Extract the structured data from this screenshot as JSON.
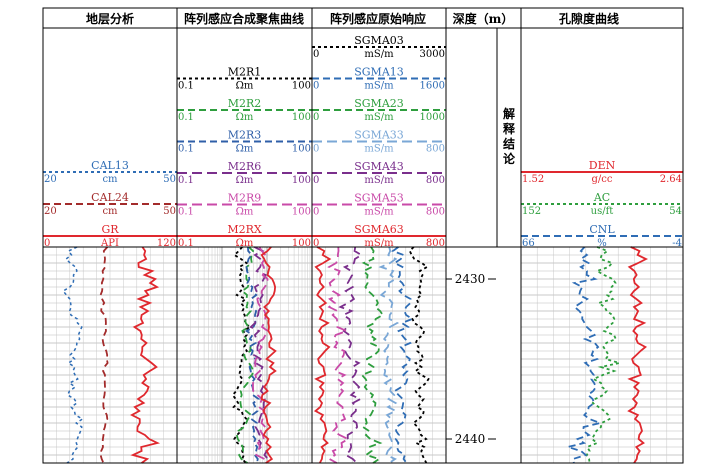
{
  "tracks": [
    {
      "key": "t1",
      "title": "地层分析"
    },
    {
      "key": "t2",
      "title": "阵列感应合成聚焦曲线"
    },
    {
      "key": "t3",
      "title": "阵列感应原始响应"
    },
    {
      "key": "t4",
      "title": "深度（m）"
    },
    {
      "key": "t5",
      "title": "孔隙度曲线"
    }
  ],
  "conclusion_label": "解释结论",
  "depth": {
    "top": 2428,
    "bottom": 2441.5,
    "labels": [
      "2430",
      "2440"
    ]
  },
  "curves": {
    "t1": [
      {
        "name": "CAL13",
        "unit": "cm",
        "min": "20",
        "max": "50",
        "color": "#2f6db5",
        "dash": "3,3"
      },
      {
        "name": "CAL24",
        "unit": "cm",
        "min": "20",
        "max": "50",
        "color": "#a32b2b",
        "dash": "7,4"
      },
      {
        "name": "GR",
        "unit": "API",
        "min": "0",
        "max": "120",
        "color": "#e0282e",
        "dash": ""
      }
    ],
    "t2": [
      {
        "name": "M2R1",
        "unit": "Ωm",
        "min": "0.1",
        "max": "100",
        "color": "#000000",
        "dash": "3,3"
      },
      {
        "name": "M2R2",
        "unit": "Ωm",
        "min": "0.1",
        "max": "100",
        "color": "#2e9e3e",
        "dash": "7,4"
      },
      {
        "name": "M2R3",
        "unit": "Ωm",
        "min": "0.1",
        "max": "100",
        "color": "#2f5fa8",
        "dash": "7,4"
      },
      {
        "name": "M2R6",
        "unit": "Ωm",
        "min": "0.1",
        "max": "100",
        "color": "#7a2f8c",
        "dash": "10,5"
      },
      {
        "name": "M2R9",
        "unit": "Ωm",
        "min": "0.1",
        "max": "100",
        "color": "#c94aa8",
        "dash": "10,5"
      },
      {
        "name": "M2RX",
        "unit": "Ωm",
        "min": "0.1",
        "max": "100",
        "color": "#e0282e",
        "dash": ""
      }
    ],
    "t3": [
      {
        "name": "SGMA03",
        "unit": "mS/m",
        "min": "0",
        "max": "3000",
        "color": "#000000",
        "dash": "3,3"
      },
      {
        "name": "SGMA13",
        "unit": "mS/m",
        "min": "0",
        "max": "1600",
        "color": "#2f6db5",
        "dash": "7,4"
      },
      {
        "name": "SGMA23",
        "unit": "mS/m",
        "min": "0",
        "max": "1000",
        "color": "#2e9e3e",
        "dash": "7,4"
      },
      {
        "name": "SGMA33",
        "unit": "mS/m",
        "min": "0",
        "max": "800",
        "color": "#7aa7d6",
        "dash": "10,5"
      },
      {
        "name": "SGMA43",
        "unit": "mS/m",
        "min": "0",
        "max": "800",
        "color": "#7a2f8c",
        "dash": "10,5"
      },
      {
        "name": "SGMA53",
        "unit": "mS/m",
        "min": "0",
        "max": "800",
        "color": "#c94aa8",
        "dash": "10,5"
      },
      {
        "name": "SGMA63",
        "unit": "mS/m",
        "min": "0",
        "max": "800",
        "color": "#e0282e",
        "dash": ""
      }
    ],
    "t5": [
      {
        "name": "DEN",
        "unit": "g/cc",
        "min": "1.52",
        "max": "2.64",
        "color": "#e0282e",
        "dash": ""
      },
      {
        "name": "AC",
        "unit": "us/ft",
        "min": "152",
        "max": "54",
        "color": "#2e9e3e",
        "dash": "3,3"
      },
      {
        "name": "CNL",
        "unit": "%",
        "min": "66",
        "max": "-4",
        "color": "#2f6db5",
        "dash": "7,4"
      }
    ]
  }
}
